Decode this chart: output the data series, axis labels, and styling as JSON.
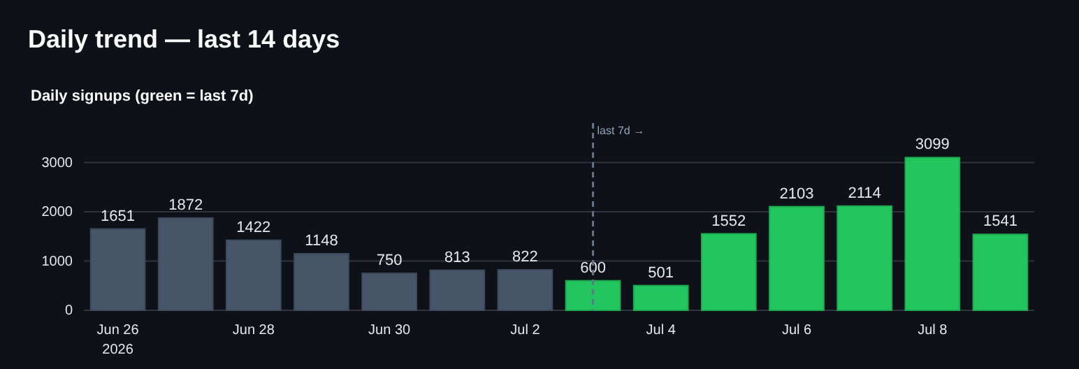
{
  "chart_data": {
    "type": "bar",
    "title": "Daily trend — last 14 days",
    "subtitle": "Daily signups (green = last 7d)",
    "x": [
      "2026-06-26",
      "2026-06-27",
      "2026-06-28",
      "2026-06-29",
      "2026-06-30",
      "2026-07-01",
      "2026-07-02",
      "2026-07-03",
      "2026-07-04",
      "2026-07-05",
      "2026-07-06",
      "2026-07-07",
      "2026-07-08",
      "2026-07-09"
    ],
    "values": [
      1651,
      1872,
      1422,
      1148,
      750,
      813,
      822,
      600,
      501,
      1552,
      2103,
      2114,
      3099,
      1541
    ],
    "colors": [
      "#475569",
      "#475569",
      "#475569",
      "#475569",
      "#475569",
      "#475569",
      "#475569",
      "#22c55e",
      "#22c55e",
      "#22c55e",
      "#22c55e",
      "#22c55e",
      "#22c55e",
      "#22c55e"
    ],
    "xlim": [
      "2026-06-25T12:00",
      "2026-07-09T12:00"
    ],
    "xticks": [
      {
        "value": "2026-06-26",
        "label": "Jun 26\n2026"
      },
      {
        "value": "2026-06-28",
        "label": "Jun 28"
      },
      {
        "value": "2026-06-30",
        "label": "Jun 30"
      },
      {
        "value": "2026-07-02",
        "label": "Jul 2"
      },
      {
        "value": "2026-07-04",
        "label": "Jul 4"
      },
      {
        "value": "2026-07-06",
        "label": "Jul 6"
      },
      {
        "value": "2026-07-08",
        "label": "Jul 8"
      }
    ],
    "ylim": [
      0,
      3800
    ],
    "yticks": [
      0,
      1000,
      2000,
      3000
    ],
    "grid": "y",
    "data_labels": true,
    "ref_lines": [
      {
        "axis": "x",
        "value": "2026-07-03",
        "label": "last 7d →",
        "line_style": "dashed",
        "color": "#64748b"
      }
    ]
  }
}
